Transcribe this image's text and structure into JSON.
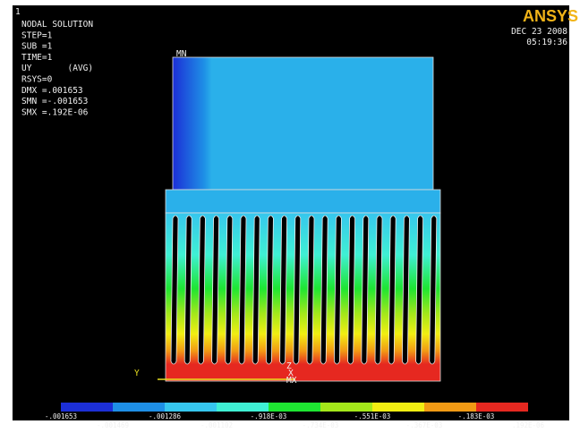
{
  "window": {
    "number": "1",
    "logo": "ANSYS",
    "date": "DEC 23 2008",
    "time": "05:19:36"
  },
  "info": [
    "NODAL SOLUTION",
    "STEP=1",
    "SUB =1",
    "TIME=1",
    "UY       (AVG)",
    "RSYS=0",
    "DMX =.001653",
    "SMN =-.001653",
    "SMX =.192E-06"
  ],
  "model": {
    "min_label": "MN",
    "axis_label": "Y",
    "max_label": "MX",
    "axis_x_label": "X",
    "axis_z_label": "Z"
  },
  "legend": {
    "colors": [
      "#1c2fd6",
      "#1e8fe6",
      "#36c6ee",
      "#3ff0d4",
      "#1ee632",
      "#a4e81a",
      "#f2ee12",
      "#f29a14",
      "#e62820"
    ],
    "labels": [
      "-.001653",
      "-.001469",
      "-.001286",
      "-.001102",
      "-.918E-03",
      "-.734E-03",
      "-.551E-03",
      "-.367E-03",
      "-.183E-03",
      ".192E-06"
    ]
  }
}
